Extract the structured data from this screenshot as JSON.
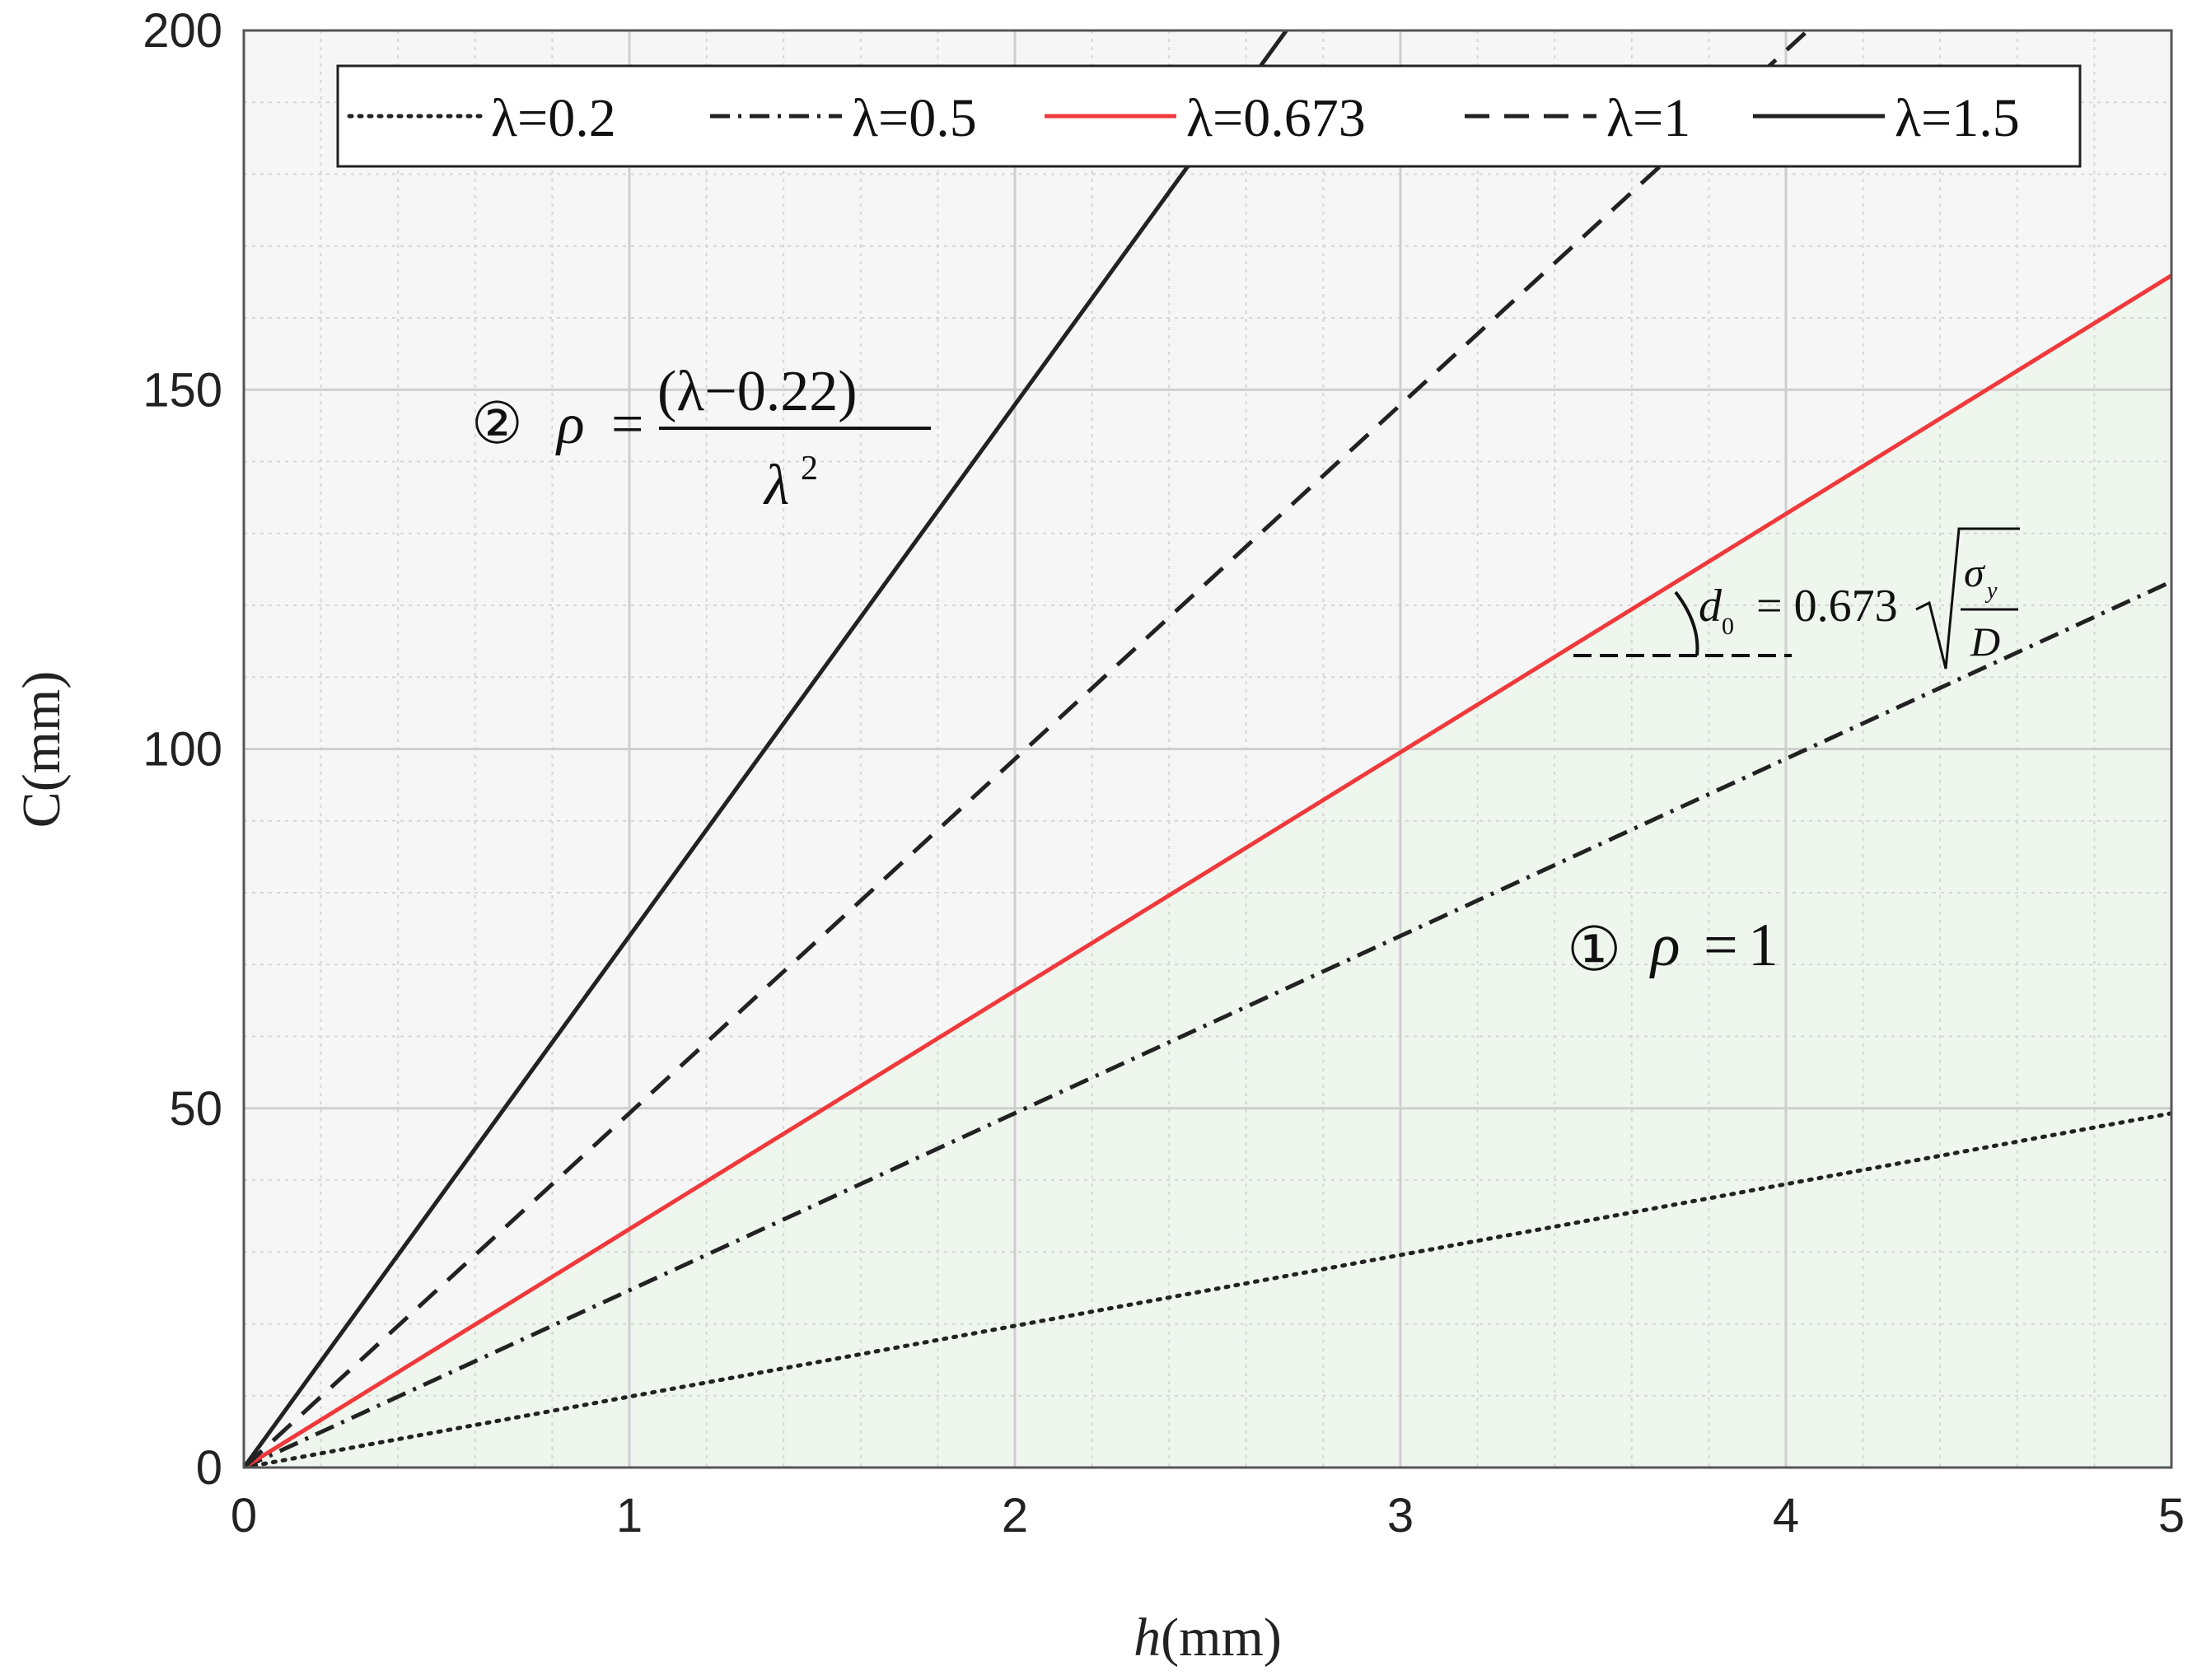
{
  "chart_data": {
    "type": "line",
    "xlabel": "h(mm)",
    "ylabel": "C(mm)",
    "xlim": [
      0,
      5
    ],
    "ylim": [
      0,
      200
    ],
    "xticks": [
      "0",
      "1",
      "2",
      "3",
      "4",
      "5"
    ],
    "yticks": [
      "0",
      "50",
      "100",
      "150",
      "200"
    ],
    "grid": true,
    "minor_grid": true,
    "legend": "top",
    "series": [
      {
        "name": "λ=0.2",
        "style": "dotted",
        "color": "#222222",
        "x": [
          0,
          5
        ],
        "y": [
          0,
          49.3
        ]
      },
      {
        "name": "λ=0.5",
        "style": "dashdot",
        "color": "#222222",
        "x": [
          0,
          5
        ],
        "y": [
          0,
          123.3
        ]
      },
      {
        "name": "λ=0.673",
        "style": "solid",
        "color": "#f0393b",
        "x": [
          0,
          5
        ],
        "y": [
          0,
          165.9
        ]
      },
      {
        "name": "λ=1",
        "style": "dashed",
        "color": "#222222",
        "x": [
          0,
          5
        ],
        "y": [
          0,
          246.5
        ]
      },
      {
        "name": "λ=1.5",
        "style": "solid",
        "color": "#222222",
        "x": [
          0,
          5
        ],
        "y": [
          0,
          369.8
        ]
      }
    ],
    "regions": [
      {
        "name": "region-1",
        "below_series": "λ=0.673",
        "color": "#eef6ee"
      },
      {
        "name": "region-2",
        "above_series": "λ=0.673",
        "color": "#f6f6f6"
      }
    ],
    "annotations": {
      "region1": {
        "marker": "①",
        "rho": "ρ",
        "eq": "=",
        "value": "1"
      },
      "region2": {
        "marker": "②",
        "rho": "ρ",
        "eq": "=",
        "numerator": "(λ−0.22)",
        "denominator": "λ",
        "exponent": "2"
      },
      "slope": {
        "d": "d",
        "sub": "0",
        "eq": "= 0.673",
        "sigma": "σ",
        "sigma_sub": "y",
        "denominator": "D"
      }
    }
  }
}
